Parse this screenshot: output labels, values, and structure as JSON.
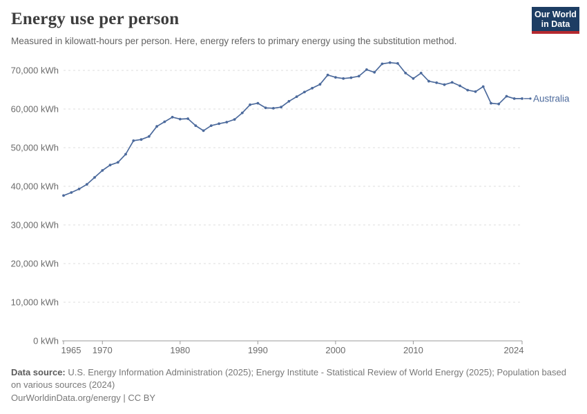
{
  "header": {
    "title": "Energy use per person",
    "subtitle": "Measured in kilowatt-hours per person. Here, energy refers to primary energy using the substitution method.",
    "logo": {
      "line1": "Our World",
      "line2": "in Data"
    }
  },
  "chart_data": {
    "type": "line",
    "title": "Energy use per person",
    "ylabel": "",
    "xlabel": "",
    "unit_suffix": " kWh",
    "entity_label": "Australia",
    "grid": true,
    "xlim": [
      1965,
      2024
    ],
    "ylim": [
      0,
      72500
    ],
    "x_ticks": [
      1965,
      1970,
      1980,
      1990,
      2000,
      2010,
      2024
    ],
    "y_ticks": [
      0,
      10000,
      20000,
      30000,
      40000,
      50000,
      60000,
      70000
    ],
    "x": [
      1965,
      1966,
      1967,
      1968,
      1969,
      1970,
      1971,
      1972,
      1973,
      1974,
      1975,
      1976,
      1977,
      1978,
      1979,
      1980,
      1981,
      1982,
      1983,
      1984,
      1985,
      1986,
      1987,
      1988,
      1989,
      1990,
      1991,
      1992,
      1993,
      1994,
      1995,
      1996,
      1997,
      1998,
      1999,
      2000,
      2001,
      2002,
      2003,
      2004,
      2005,
      2006,
      2007,
      2008,
      2009,
      2010,
      2011,
      2012,
      2013,
      2014,
      2015,
      2016,
      2017,
      2018,
      2019,
      2020,
      2021,
      2022,
      2023,
      2024
    ],
    "series": [
      {
        "name": "Australia",
        "values": [
          37600,
          38400,
          39300,
          40500,
          42300,
          44100,
          45500,
          46200,
          48300,
          51800,
          52100,
          52900,
          55500,
          56700,
          57900,
          57400,
          57500,
          55700,
          54400,
          55700,
          56200,
          56600,
          57300,
          59000,
          61100,
          61500,
          60300,
          60200,
          60500,
          62000,
          63200,
          64400,
          65400,
          66400,
          68800,
          68200,
          67900,
          68100,
          68500,
          70200,
          69500,
          71700,
          72000,
          71800,
          69300,
          67900,
          69300,
          67200,
          66800,
          66300,
          66900,
          66000,
          64900,
          64500,
          65800,
          61500,
          61300,
          63300,
          62700,
          62700
        ]
      }
    ],
    "legend_position": "end-of-line"
  },
  "footer": {
    "source_label": "Data source:",
    "source_text": " U.S. Energy Information Administration (2025); Energy Institute - Statistical Review of World Energy (2025); Population based on various sources (2024)",
    "license": "OurWorldinData.org/energy | CC BY"
  },
  "colors": {
    "line": "#4C6A9C",
    "entity_label": "#4C6A9C",
    "gridline": "#dcdcdc",
    "axis": "#9a9a9a",
    "tick_label": "#6b6b6b",
    "logo_bg": "#1d3d63",
    "logo_bar": "#b5292f"
  }
}
